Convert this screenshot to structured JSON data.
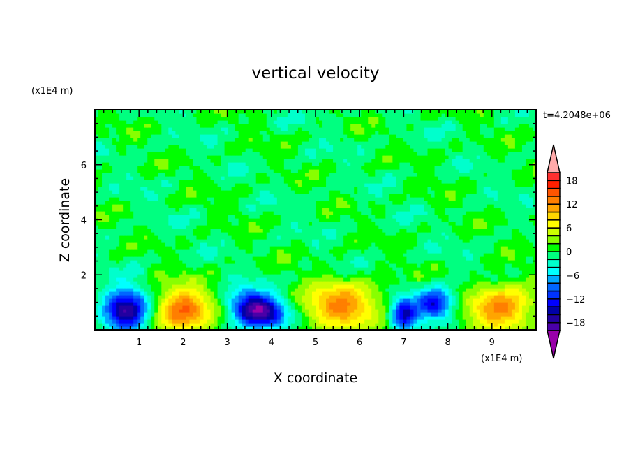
{
  "chart_data": {
    "type": "heatmap",
    "subtype": "filled-contour",
    "title": "vertical velocity",
    "xlabel": "X coordinate",
    "ylabel": "Z coordinate",
    "x_unit_label": "(x1E4 m)",
    "y_unit_label": "(x1E4 m)",
    "time_label": "t=4.2048e+06",
    "xlim": [
      0,
      10
    ],
    "ylim": [
      0,
      8
    ],
    "x_ticks": [
      1,
      2,
      3,
      4,
      5,
      6,
      7,
      8,
      9
    ],
    "y_ticks": [
      2,
      4,
      6
    ],
    "colorbar": {
      "levels": [
        -20,
        -18,
        -16,
        -14,
        -12,
        -10,
        -8,
        -6,
        -4,
        -2,
        0,
        2,
        4,
        6,
        8,
        10,
        12,
        14,
        16,
        18,
        20
      ],
      "tick_labels": [
        "18",
        "12",
        "6",
        "0",
        "-6",
        "-12",
        "-18"
      ],
      "tick_values": [
        18,
        12,
        6,
        0,
        -6,
        -12,
        -18
      ],
      "colors": [
        "#4a00a8",
        "#2200a0",
        "#0000a8",
        "#0000ff",
        "#0033ff",
        "#0066ff",
        "#00a8ff",
        "#00ffff",
        "#00ffcc",
        "#00ff80",
        "#00ff00",
        "#88ff00",
        "#ccff00",
        "#ffff00",
        "#ffd700",
        "#ffa500",
        "#ff7f00",
        "#ff5500",
        "#ff2000",
        "#ff3030"
      ],
      "over_color": "#ffaaaa",
      "under_color": "#9900aa"
    },
    "cells": [
      {
        "x": 0.7,
        "z": 0.7,
        "amplitude": -18,
        "sx": 0.35,
        "sz": 0.55
      },
      {
        "x": 2.0,
        "z": 0.7,
        "amplitude": 14.5,
        "sx": 0.45,
        "sz": 0.6
      },
      {
        "x": 3.5,
        "z": 0.85,
        "amplitude": -13,
        "sx": 0.35,
        "sz": 0.45
      },
      {
        "x": 3.9,
        "z": 0.6,
        "amplitude": -12,
        "sx": 0.35,
        "sz": 0.4
      },
      {
        "x": 5.6,
        "z": 0.9,
        "amplitude": 12.5,
        "sx": 0.6,
        "sz": 0.6
      },
      {
        "x": 7.0,
        "z": 0.6,
        "amplitude": -15,
        "sx": 0.2,
        "sz": 0.4
      },
      {
        "x": 7.7,
        "z": 0.95,
        "amplitude": -14,
        "sx": 0.3,
        "sz": 0.4
      },
      {
        "x": 9.2,
        "z": 0.8,
        "amplitude": 13,
        "sx": 0.5,
        "sz": 0.6
      }
    ],
    "background_amplitude": 1.8
  }
}
